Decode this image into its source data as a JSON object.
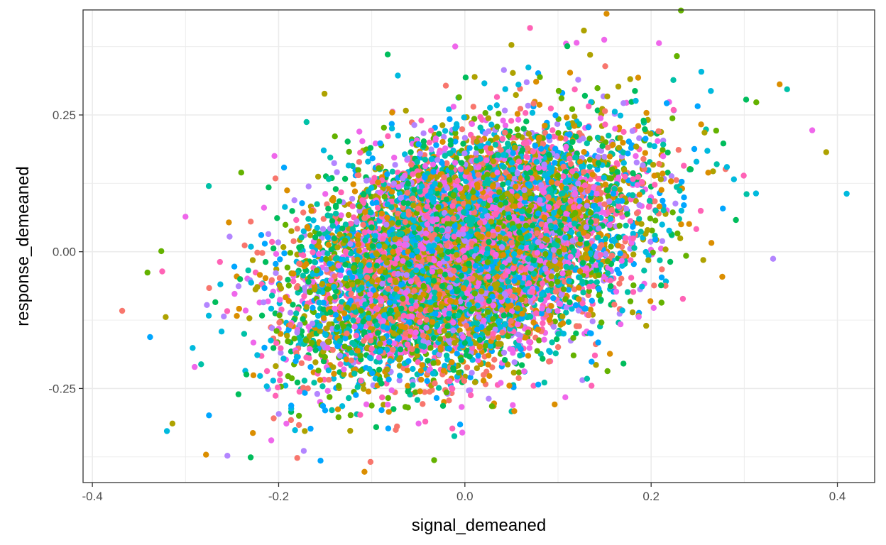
{
  "chart_data": {
    "type": "scatter",
    "title": "",
    "xlabel": "signal_demeaned",
    "ylabel": "response_demeaned",
    "xlim": [
      -0.41,
      0.44
    ],
    "ylim": [
      -0.422,
      0.442
    ],
    "x_ticks": [
      -0.4,
      -0.2,
      0.0,
      0.2,
      0.4
    ],
    "x_tick_labels": [
      "-0.4",
      "-0.2",
      "0.0",
      "0.2",
      "0.4"
    ],
    "y_ticks": [
      -0.25,
      0.0,
      0.25
    ],
    "y_tick_labels": [
      "-0.25",
      "0.00",
      "0.25"
    ],
    "grid": true,
    "legend": "none",
    "series_colors": [
      "#F8766D",
      "#DB8E00",
      "#AEA200",
      "#64B200",
      "#00BD5C",
      "#00C1A7",
      "#00BADE",
      "#00A6FF",
      "#B385FF",
      "#EF67EB",
      "#FF63B6"
    ],
    "distribution": {
      "n_points": 9000,
      "x_mean": 0.0,
      "x_sd": 0.09,
      "y_mean": 0.0,
      "y_sd": 0.11,
      "correlation": 0.4
    },
    "extreme_points": [
      {
        "x": 0.232,
        "y": 0.441
      },
      {
        "x": 0.07,
        "y": 0.409
      },
      {
        "x": 0.41,
        "y": 0.106
      },
      {
        "x": 0.388,
        "y": 0.182
      },
      {
        "x": 0.373,
        "y": 0.222
      },
      {
        "x": 0.346,
        "y": 0.297
      },
      {
        "x": 0.338,
        "y": 0.306
      },
      {
        "x": 0.331,
        "y": -0.013
      },
      {
        "x": 0.302,
        "y": 0.278
      },
      {
        "x": -0.368,
        "y": -0.108
      },
      {
        "x": -0.338,
        "y": -0.156
      },
      {
        "x": -0.326,
        "y": 0.001
      },
      {
        "x": -0.325,
        "y": -0.036
      },
      {
        "x": -0.32,
        "y": -0.328
      },
      {
        "x": -0.314,
        "y": -0.314
      },
      {
        "x": -0.3,
        "y": 0.064
      },
      {
        "x": -0.275,
        "y": 0.12
      },
      {
        "x": -0.278,
        "y": -0.371
      },
      {
        "x": -0.255,
        "y": -0.373
      },
      {
        "x": -0.23,
        "y": -0.376
      },
      {
        "x": -0.18,
        "y": -0.377
      },
      {
        "x": -0.155,
        "y": -0.382
      },
      {
        "x": -0.033,
        "y": -0.381
      },
      {
        "x": 0.136,
        "y": -0.245
      },
      {
        "x": -0.072,
        "y": 0.322
      },
      {
        "x": 0.05,
        "y": 0.378
      },
      {
        "x": 0.12,
        "y": 0.382
      },
      {
        "x": -0.17,
        "y": 0.237
      }
    ]
  }
}
